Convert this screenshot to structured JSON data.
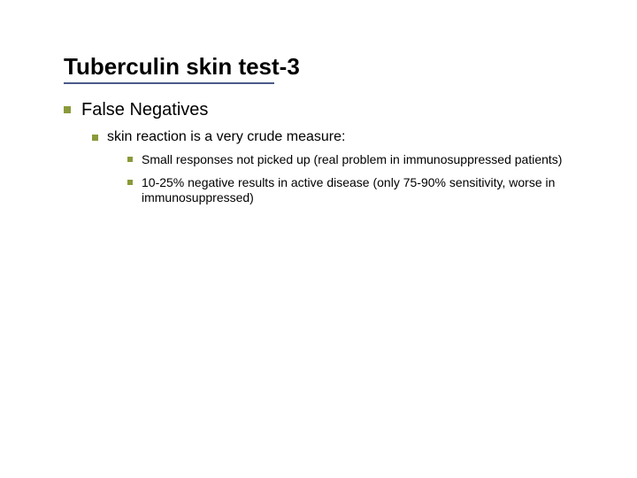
{
  "colors": {
    "background": "#ffffff",
    "text": "#000000",
    "bullet": "#8a9a3a",
    "underline": "#4a5a8a"
  },
  "typography": {
    "title_fontsize": 26,
    "title_weight": "bold",
    "lvl1_fontsize": 20,
    "lvl2_fontsize": 16,
    "lvl3_fontsize": 14,
    "font_family": "Tahoma, Verdana, sans-serif"
  },
  "layout": {
    "slide_width": 720,
    "slide_height": 540,
    "underline_width": 238,
    "bullet_shape": "square"
  },
  "title": "Tuberculin skin test-3",
  "bullets": {
    "lvl1": [
      {
        "text": "False Negatives",
        "children": [
          {
            "text": "skin reaction is a very crude measure:",
            "children": [
              {
                "text": "Small responses not picked up (real problem in immunosuppressed patients)"
              },
              {
                "text": "10-25% negative results in active disease (only 75-90% sensitivity, worse in immunosuppressed)"
              }
            ]
          }
        ]
      }
    ]
  }
}
